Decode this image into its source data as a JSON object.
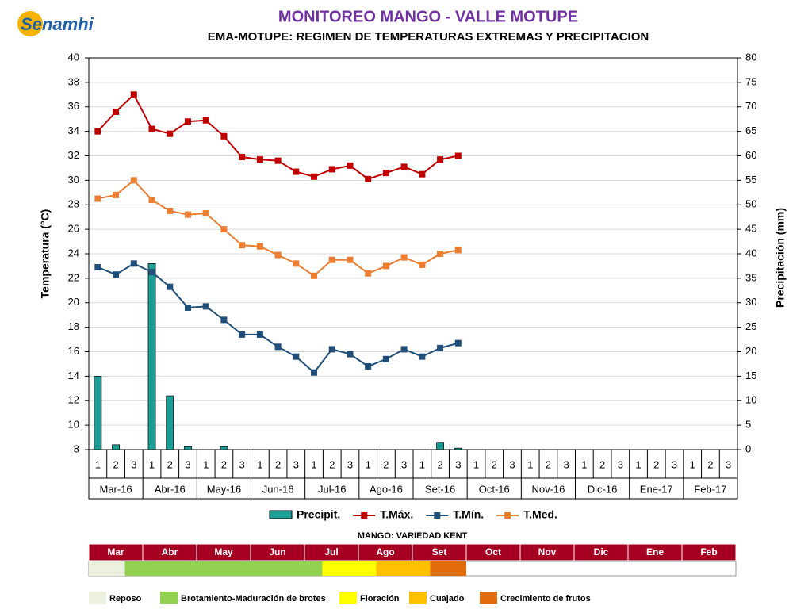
{
  "logo": "Senamhi",
  "chart_data": {
    "type": "bar_line",
    "title": "MONITOREO MANGO - VALLE MOTUPE",
    "subtitle": "EMA-MOTUPE: REGIMEN DE TEMPERATURAS EXTREMAS Y PRECIPITACION",
    "y_label": "Temperatura (°C)",
    "y2_label": "Precipitación (mm)",
    "categories": [
      "1",
      "2",
      "3",
      "1",
      "2",
      "3",
      "1",
      "2",
      "3",
      "1",
      "2",
      "3",
      "1",
      "2",
      "3",
      "1",
      "2",
      "3",
      "1",
      "2",
      "3",
      "1",
      "2",
      "3",
      "1",
      "2",
      "3",
      "1",
      "2",
      "3",
      "1",
      "2",
      "3",
      "1",
      "2",
      "3"
    ],
    "months": [
      "Mar-16",
      "Abr-16",
      "May-16",
      "Jun-16",
      "Jul-16",
      "Ago-16",
      "Set-16",
      "Oct-16",
      "Nov-16",
      "Dic-16",
      "Ene-17",
      "Feb-17"
    ],
    "ylim": [
      8,
      40
    ],
    "yticks": [
      8,
      10,
      12,
      14,
      16,
      18,
      20,
      22,
      24,
      26,
      28,
      30,
      32,
      34,
      36,
      38,
      40
    ],
    "y2lim": [
      0,
      80
    ],
    "y2ticks": [
      0,
      5,
      10,
      15,
      20,
      25,
      30,
      35,
      40,
      45,
      50,
      55,
      60,
      65,
      70,
      75,
      80
    ],
    "grid": true,
    "series": [
      {
        "name": "Precipit.",
        "type": "bar",
        "axis": "y2",
        "color": "#1a9e96",
        "values": [
          15,
          1,
          0,
          38,
          11,
          0.6,
          0,
          0.6,
          0,
          0,
          0,
          0,
          0,
          0,
          0,
          0,
          0,
          0,
          0,
          1.5,
          0.3,
          null,
          null,
          null,
          null,
          null,
          null,
          null,
          null,
          null,
          null,
          null,
          null,
          null,
          null,
          null
        ]
      },
      {
        "name": "T.Máx.",
        "type": "line",
        "color": "#c00000",
        "values": [
          34.0,
          35.6,
          37.0,
          34.2,
          33.8,
          34.8,
          34.9,
          33.6,
          31.9,
          31.7,
          31.6,
          30.7,
          30.3,
          30.9,
          31.2,
          30.1,
          30.6,
          31.1,
          30.5,
          31.7,
          32.0,
          null,
          null,
          null,
          null,
          null,
          null,
          null,
          null,
          null,
          null,
          null,
          null,
          null,
          null,
          null
        ]
      },
      {
        "name": "T.Mín.",
        "type": "line",
        "color": "#1f4e79",
        "values": [
          22.9,
          22.3,
          23.2,
          22.5,
          21.3,
          19.6,
          19.7,
          18.6,
          17.4,
          17.4,
          16.4,
          15.6,
          14.3,
          16.2,
          15.8,
          14.8,
          15.4,
          16.2,
          15.6,
          16.3,
          16.7,
          null,
          null,
          null,
          null,
          null,
          null,
          null,
          null,
          null,
          null,
          null,
          null,
          null,
          null,
          null
        ]
      },
      {
        "name": "T.Med.",
        "type": "line",
        "color": "#ed7d31",
        "values": [
          28.5,
          28.8,
          30.0,
          28.4,
          27.5,
          27.2,
          27.3,
          26.0,
          24.7,
          24.6,
          23.9,
          23.2,
          22.2,
          23.5,
          23.5,
          22.4,
          23.0,
          23.7,
          23.1,
          24.0,
          24.3,
          null,
          null,
          null,
          null,
          null,
          null,
          null,
          null,
          null,
          null,
          null,
          null,
          null,
          null,
          null
        ]
      }
    ]
  },
  "phenology": {
    "title": "MANGO: VARIEDAD KENT",
    "months": [
      "Mar",
      "Abr",
      "May",
      "Jun",
      "Jul",
      "Ago",
      "Set",
      "Oct",
      "Nov",
      "Dic",
      "Ene",
      "Feb"
    ],
    "phases": [
      {
        "name": "Reposo",
        "color": "#ebf1de",
        "start": 0,
        "end": 0.67
      },
      {
        "name": "Brotamiento-Maduración de brotes",
        "color": "#92d050",
        "start": 0.67,
        "end": 4.33
      },
      {
        "name": "Floración",
        "color": "#ffff00",
        "start": 4.33,
        "end": 5.33
      },
      {
        "name": "Cuajado",
        "color": "#ffc000",
        "start": 5.33,
        "end": 6.33
      },
      {
        "name": "Crecimiento de frutos",
        "color": "#e26b0a",
        "start": 6.33,
        "end": 7
      }
    ]
  }
}
